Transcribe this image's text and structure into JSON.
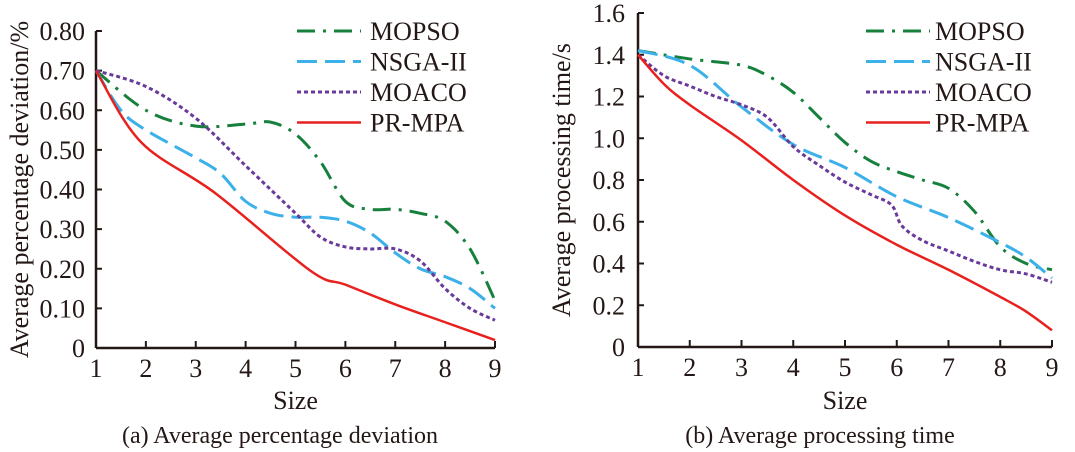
{
  "chart_data": [
    {
      "type": "line",
      "caption": "(a) Average percentage deviation",
      "xlabel": "Size",
      "ylabel": "Average percentage deviation/%",
      "xlim": [
        1,
        9
      ],
      "ylim": [
        0,
        0.8
      ],
      "xticks": [
        "1",
        "2",
        "3",
        "4",
        "5",
        "6",
        "7",
        "8",
        "9"
      ],
      "yticks": [
        {
          "v": 0,
          "label": "0"
        },
        {
          "v": 0.1,
          "label": "0.10"
        },
        {
          "v": 0.2,
          "label": "0.20"
        },
        {
          "v": 0.3,
          "label": "0.30"
        },
        {
          "v": 0.4,
          "label": "0.40"
        },
        {
          "v": 0.5,
          "label": "0.50"
        },
        {
          "v": 0.6,
          "label": "0.60"
        },
        {
          "v": 0.7,
          "label": "0.70"
        },
        {
          "v": 0.8,
          "label": "0.80"
        }
      ],
      "grid": false,
      "legend": "top-right",
      "series": [
        {
          "name": "MOPSO",
          "color": "#16803c",
          "style": "dashdot",
          "x": [
            1,
            2,
            3,
            4,
            4.5,
            5,
            5.5,
            6,
            6.5,
            7,
            7.5,
            8,
            8.5,
            9
          ],
          "y": [
            0.7,
            0.6,
            0.56,
            0.565,
            0.57,
            0.54,
            0.47,
            0.37,
            0.35,
            0.35,
            0.34,
            0.32,
            0.25,
            0.12
          ]
        },
        {
          "name": "NSGA-II",
          "color": "#3cb0e8",
          "style": "dash",
          "x": [
            1,
            1.5,
            2,
            3,
            3.5,
            4,
            4.5,
            5,
            5.5,
            6,
            6.5,
            7,
            7.5,
            8,
            8.5,
            9
          ],
          "y": [
            0.7,
            0.6,
            0.55,
            0.48,
            0.44,
            0.37,
            0.34,
            0.33,
            0.33,
            0.32,
            0.29,
            0.24,
            0.2,
            0.18,
            0.15,
            0.1
          ]
        },
        {
          "name": "MOACO",
          "color": "#6a3a9a",
          "style": "dot",
          "x": [
            1,
            2,
            3,
            4,
            5,
            5.5,
            6,
            6.5,
            7,
            7.5,
            8,
            8.5,
            9
          ],
          "y": [
            0.7,
            0.66,
            0.58,
            0.46,
            0.34,
            0.28,
            0.255,
            0.25,
            0.25,
            0.22,
            0.15,
            0.1,
            0.07
          ]
        },
        {
          "name": "PR-MPA",
          "color": "#e8211e",
          "style": "solid",
          "x": [
            1,
            1.9,
            3.4,
            5.3,
            6,
            7,
            8,
            9
          ],
          "y": [
            0.7,
            0.52,
            0.39,
            0.195,
            0.16,
            0.11,
            0.065,
            0.02
          ]
        }
      ]
    },
    {
      "type": "line",
      "caption": "(b) Average processing time",
      "xlabel": "Size",
      "ylabel": "Average processing time/s",
      "xlim": [
        1,
        9
      ],
      "ylim": [
        0,
        1.6
      ],
      "xticks": [
        "1",
        "2",
        "3",
        "4",
        "5",
        "6",
        "7",
        "8",
        "9"
      ],
      "yticks": [
        {
          "v": 0,
          "label": "0"
        },
        {
          "v": 0.2,
          "label": "0.2"
        },
        {
          "v": 0.4,
          "label": "0.4"
        },
        {
          "v": 0.6,
          "label": "0.6"
        },
        {
          "v": 0.8,
          "label": "0.8"
        },
        {
          "v": 1.0,
          "label": "1.0"
        },
        {
          "v": 1.2,
          "label": "1.2"
        },
        {
          "v": 1.4,
          "label": "1.4"
        },
        {
          "v": 1.6,
          "label": "1.6"
        }
      ],
      "grid": false,
      "legend": "top-right",
      "series": [
        {
          "name": "MOPSO",
          "color": "#16803c",
          "style": "dashdot",
          "x": [
            1,
            2,
            3,
            3.5,
            4,
            4.5,
            5,
            5.5,
            6,
            6.5,
            7,
            7.5,
            8,
            8.5,
            9
          ],
          "y": [
            1.42,
            1.38,
            1.35,
            1.3,
            1.22,
            1.1,
            0.98,
            0.89,
            0.84,
            0.8,
            0.76,
            0.65,
            0.48,
            0.4,
            0.37
          ]
        },
        {
          "name": "NSGA-II",
          "color": "#3cb0e8",
          "style": "dash",
          "x": [
            1,
            2,
            3,
            4,
            5,
            6,
            7,
            8,
            8.5,
            9
          ],
          "y": [
            1.42,
            1.35,
            1.15,
            0.97,
            0.86,
            0.72,
            0.62,
            0.5,
            0.43,
            0.33
          ]
        },
        {
          "name": "MOACO",
          "color": "#6a3a9a",
          "style": "dot",
          "x": [
            1,
            1.5,
            2,
            2.5,
            3,
            3.5,
            4,
            4.5,
            5,
            5.5,
            5.9,
            6.1,
            6.5,
            7,
            7.5,
            8,
            8.5,
            9
          ],
          "y": [
            1.4,
            1.3,
            1.25,
            1.2,
            1.16,
            1.1,
            0.96,
            0.87,
            0.79,
            0.73,
            0.68,
            0.58,
            0.51,
            0.46,
            0.41,
            0.37,
            0.35,
            0.31
          ]
        },
        {
          "name": "PR-MPA",
          "color": "#e8211e",
          "style": "solid",
          "x": [
            1,
            1.5,
            2,
            3,
            4,
            5,
            6,
            7,
            8,
            8.5,
            9
          ],
          "y": [
            1.4,
            1.26,
            1.16,
            0.99,
            0.8,
            0.63,
            0.49,
            0.37,
            0.24,
            0.17,
            0.08
          ]
        }
      ]
    }
  ]
}
